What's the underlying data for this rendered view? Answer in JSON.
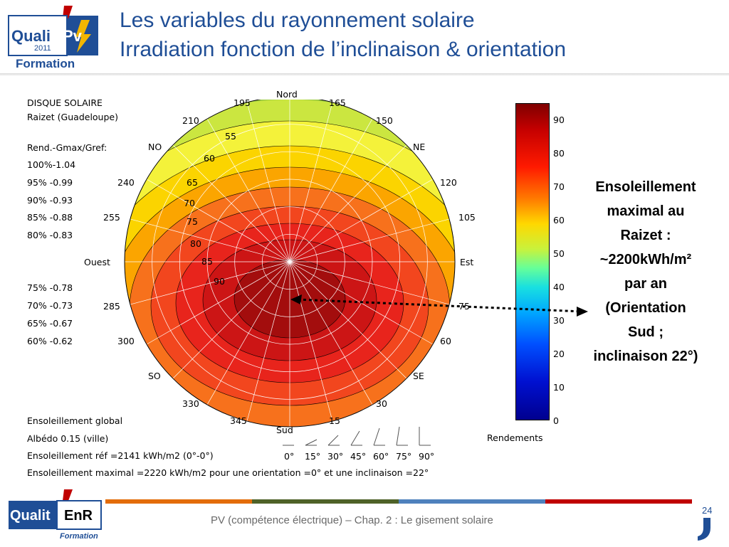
{
  "header": {
    "title_line1": "Les variables du rayonnement solaire",
    "title_line2": "Irradiation fonction de l’inclinaison & orientation",
    "logo": {
      "line1": "Quali",
      "line2": "Pv",
      "year": "2011",
      "subtitle": "Formation"
    }
  },
  "figure": {
    "caption": "DISQUE SOLAIRE",
    "location": "Raizet (Guadeloupe)",
    "legend_heading": "Rend.-Gmax/Gref:",
    "legend_rows": [
      "100%-1.04",
      "95%  -0.99",
      "90%  -0.93",
      "85%  -0.88",
      "80%  -0.83",
      "75%  -0.78",
      "70%  -0.73",
      "65%  -0.67",
      "60%  -0.62"
    ],
    "directions": {
      "north": "Nord",
      "south": "Sud",
      "east": "Est",
      "west": "Ouest",
      "ne": "NE",
      "no": "NO",
      "se": "SE",
      "so": "SO"
    },
    "azimuth_labels": [
      "195",
      "165",
      "210",
      "150",
      "240",
      "120",
      "255",
      "105",
      "285",
      "75",
      "300",
      "60",
      "330",
      "30",
      "345",
      "15"
    ],
    "tilt_labels": [
      "55",
      "60",
      "65",
      "70",
      "75",
      "80",
      "85",
      "90"
    ],
    "inclination_icons_labels": [
      "0°",
      "15°",
      "30°",
      "45°",
      "60°",
      "75°",
      "90°"
    ],
    "bottom_lines": [
      "Ensoleillement global",
      "Albédo 0.15 (ville)",
      "Ensoleillement réf =2141 kWh/m2 (0°-0°)",
      "Ensoleillement maximal =2220 kWh/m2 pour une orientation =0° et une inclinaison =22°"
    ],
    "colorbar": {
      "ticks": [
        "90",
        "80",
        "70",
        "60",
        "50",
        "40",
        "30",
        "20",
        "10",
        "0"
      ],
      "label": "Rendements"
    }
  },
  "annotation": {
    "lines": [
      "Ensoleillement",
      "maximal au",
      "Raizet :",
      "~2200kWh/m²",
      "par an",
      "(Orientation",
      "Sud ;",
      "inclinaison 22°)"
    ]
  },
  "footer": {
    "text": "PV (compétence électrique) – Chap. 2 : Le gisement solaire",
    "page": "24",
    "logo_text": "Qualit",
    "logo_enr": "EnR",
    "logo_sub": "Formation"
  },
  "colors": {
    "title": "#1f4e96",
    "orange": "#e36c09",
    "green": "#4f6228",
    "blue": "#4f81bd",
    "red": "#c00000"
  }
}
